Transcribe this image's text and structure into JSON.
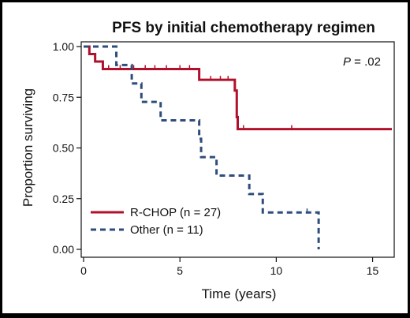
{
  "chart_data": {
    "type": "line",
    "title": "PFS by initial chemotherapy regimen",
    "xlabel": "Time (years)",
    "ylabel": "Proportion surviving",
    "xlim": [
      0,
      16
    ],
    "ylim": [
      0,
      1
    ],
    "xticks": [
      0,
      5,
      10,
      15
    ],
    "yticks": [
      0.0,
      0.25,
      0.5,
      0.75,
      1.0
    ],
    "ytick_labels": [
      "0.00",
      "0.25",
      "0.50",
      "0.75",
      "1.00"
    ],
    "annotation": {
      "italic": "P",
      "rest": " = .02"
    },
    "grid": false,
    "legend_position": "bottom-left",
    "series": [
      {
        "name": "R-CHOP (n = 27)",
        "color": "#b0102b",
        "style": "solid",
        "steps": [
          [
            0,
            1.0
          ],
          [
            0.3,
            0.963
          ],
          [
            0.6,
            0.926
          ],
          [
            1.0,
            0.889
          ],
          [
            6.0,
            0.836
          ],
          [
            7.85,
            0.783
          ],
          [
            7.95,
            0.652
          ],
          [
            8.0,
            0.593
          ],
          [
            16.0,
            0.593
          ]
        ],
        "censor": [
          1.3,
          1.9,
          2.6,
          3.2,
          3.7,
          4.3,
          5.0,
          5.5,
          6.6,
          7.1,
          7.5,
          8.3,
          10.8
        ]
      },
      {
        "name": "Other (n = 11)",
        "color": "#2e4d7c",
        "style": "dashed",
        "steps": [
          [
            0,
            1.0
          ],
          [
            1.7,
            0.909
          ],
          [
            2.5,
            0.818
          ],
          [
            3.0,
            0.727
          ],
          [
            4.0,
            0.636
          ],
          [
            6.0,
            0.545
          ],
          [
            6.1,
            0.455
          ],
          [
            6.9,
            0.364
          ],
          [
            8.6,
            0.273
          ],
          [
            9.3,
            0.182
          ],
          [
            12.2,
            0.0
          ]
        ],
        "censor": [
          11.6
        ]
      }
    ]
  }
}
